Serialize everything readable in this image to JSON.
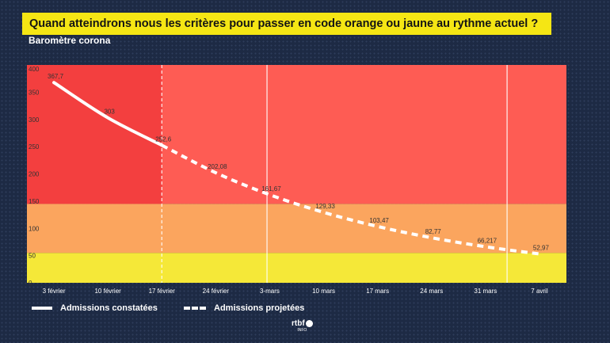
{
  "title": "Quand atteindrons nous les critères pour passer en code orange ou jaune au rythme actuel ?",
  "subtitle": "Baromètre corona",
  "chart_data": {
    "type": "line",
    "categories": [
      "3 février",
      "10 février",
      "17 février",
      "24 février",
      "3-mars",
      "10 mars",
      "17 mars",
      "24 mars",
      "31 mars",
      "7 avril"
    ],
    "ylim": [
      0,
      400
    ],
    "yticks": [
      0,
      50,
      100,
      150,
      200,
      250,
      300,
      350,
      400
    ],
    "series": [
      {
        "name": "Admissions constatées",
        "style": "solid",
        "values": [
          367.7,
          303,
          252.6,
          null,
          null,
          null,
          null,
          null,
          null,
          null
        ],
        "labels": [
          "367,7",
          "303",
          "252,6",
          "",
          "",
          "",
          "",
          "",
          "",
          ""
        ]
      },
      {
        "name": "Admissions projetées",
        "style": "dashed",
        "values": [
          null,
          null,
          252.6,
          202.08,
          161.67,
          129.33,
          103.47,
          82.77,
          66.217,
          52.97
        ],
        "labels": [
          "",
          "",
          "",
          "202,08",
          "161,67",
          "129,33",
          "103,47",
          "82,77",
          "66,217",
          "52,97"
        ]
      }
    ],
    "bands": [
      {
        "from": 0,
        "to": 55,
        "color": "#f5e838"
      },
      {
        "from": 55,
        "to": 145,
        "color": "#fba55e"
      },
      {
        "from": 145,
        "to": 400,
        "color": "#fe5c54"
      }
    ],
    "darker_region_color": "#f33f3f",
    "grid": false
  },
  "legend": {
    "observed": "Admissions constatées",
    "projected": "Admissions projetées"
  },
  "logo": {
    "main": "rtbf",
    "badge": "info",
    "sub": "INFO"
  }
}
